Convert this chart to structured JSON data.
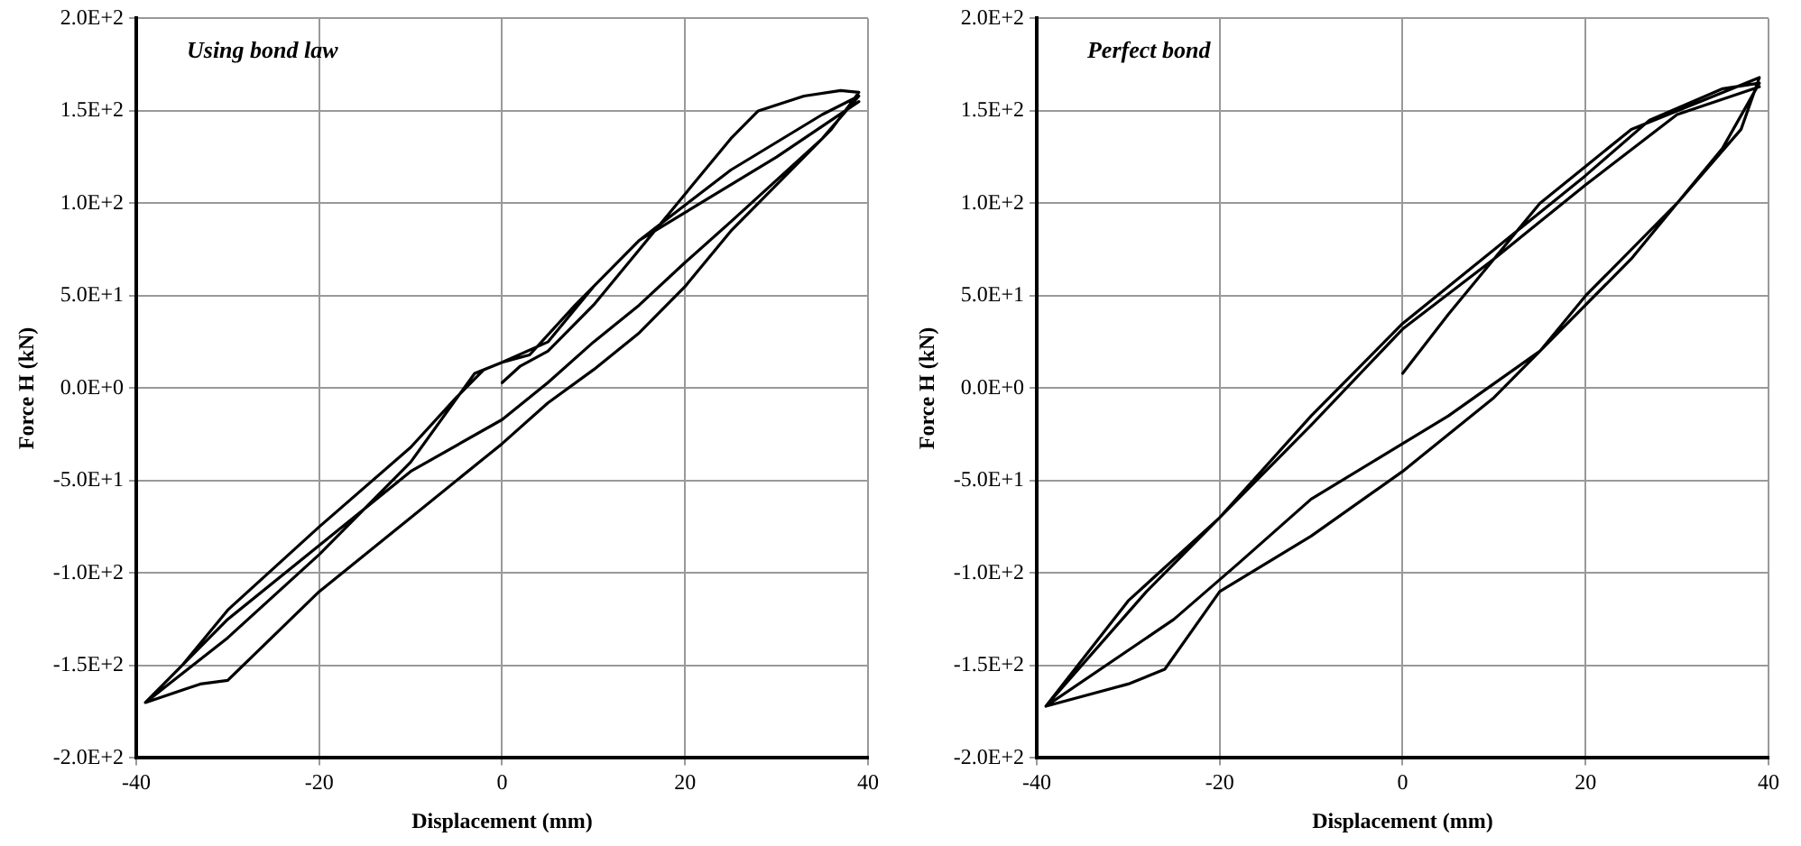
{
  "chart_data": [
    {
      "type": "line",
      "xlabel": "Displacement (mm)",
      "ylabel": "Force H (kN)",
      "annotations": [
        "Using bond law"
      ],
      "xlim": [
        -40,
        40
      ],
      "xticks": [
        -40,
        -20,
        0,
        20,
        40
      ],
      "ylim": [
        -200,
        200
      ],
      "yticks": [
        {
          "value": -200,
          "label": "-2.0E+2"
        },
        {
          "value": -150,
          "label": "-1.5E+2"
        },
        {
          "value": -100,
          "label": "-1.0E+2"
        },
        {
          "value": -50,
          "label": "-5.0E+1"
        },
        {
          "value": 0,
          "label": "0.0E+0"
        },
        {
          "value": 50,
          "label": "5.0E+1"
        },
        {
          "value": 100,
          "label": "1.0E+2"
        },
        {
          "value": 150,
          "label": "1.5E+2"
        },
        {
          "value": 200,
          "label": "2.0E+2"
        }
      ],
      "grid": true,
      "legend": false,
      "marker": "none",
      "line_style": "solid",
      "series": [
        {
          "color": "#000000",
          "x": [
            0,
            2,
            5,
            10,
            15,
            20,
            25,
            28,
            33,
            37,
            39,
            36,
            30,
            25,
            20,
            15,
            10,
            5,
            0,
            -10,
            -20,
            -30,
            -33,
            -39,
            -35,
            -30,
            -20,
            -10,
            -5,
            -2,
            0,
            3,
            8,
            15,
            25,
            35,
            39,
            35,
            25,
            20,
            15,
            10,
            5,
            0,
            -10,
            -20,
            -30,
            -39,
            -30,
            -20,
            -10,
            -3,
            0,
            5,
            10,
            15,
            20,
            30,
            39
          ],
          "values": [
            3,
            12,
            20,
            45,
            75,
            105,
            135,
            150,
            158,
            161,
            160,
            140,
            110,
            85,
            55,
            30,
            10,
            -8,
            -30,
            -70,
            -110,
            -158,
            -160,
            -170,
            -150,
            -120,
            -75,
            -32,
            -5,
            10,
            14,
            18,
            45,
            80,
            118,
            148,
            158,
            135,
            90,
            68,
            45,
            25,
            3,
            -17,
            -45,
            -85,
            -125,
            -170,
            -135,
            -90,
            -40,
            8,
            14,
            25,
            55,
            80,
            95,
            125,
            155
          ]
        }
      ]
    },
    {
      "type": "line",
      "xlabel": "Displacement (mm)",
      "ylabel": "Force H (kN)",
      "annotations": [
        "Perfect bond"
      ],
      "xlim": [
        -40,
        40
      ],
      "xticks": [
        -40,
        -20,
        0,
        20,
        40
      ],
      "ylim": [
        -200,
        200
      ],
      "yticks": [
        {
          "value": -200,
          "label": "-2.0E+2"
        },
        {
          "value": -150,
          "label": "-1.5E+2"
        },
        {
          "value": -100,
          "label": "-1.0E+2"
        },
        {
          "value": -50,
          "label": "-5.0E+1"
        },
        {
          "value": 0,
          "label": "0.0E+0"
        },
        {
          "value": 50,
          "label": "5.0E+1"
        },
        {
          "value": 100,
          "label": "1.0E+2"
        },
        {
          "value": 150,
          "label": "1.5E+2"
        },
        {
          "value": 200,
          "label": "2.0E+2"
        }
      ],
      "grid": true,
      "legend": false,
      "marker": "none",
      "line_style": "solid",
      "series": [
        {
          "color": "#000000",
          "x": [
            0,
            5,
            10,
            15,
            20,
            25,
            30,
            35,
            39,
            37,
            30,
            20,
            15,
            10,
            0,
            -10,
            -20,
            -26,
            -30,
            -39,
            -30,
            -20,
            -10,
            0,
            10,
            20,
            27,
            35,
            39,
            35,
            25,
            15,
            5,
            0,
            -10,
            -18,
            -25,
            -39,
            -28,
            -18,
            -10,
            0,
            10,
            20,
            30,
            39
          ],
          "values": [
            8,
            40,
            70,
            100,
            120,
            140,
            150,
            160,
            168,
            140,
            100,
            50,
            20,
            -5,
            -45,
            -80,
            -110,
            -152,
            -160,
            -172,
            -115,
            -70,
            -15,
            35,
            75,
            115,
            145,
            162,
            165,
            130,
            70,
            20,
            -15,
            -30,
            -60,
            -95,
            -125,
            -172,
            -110,
            -60,
            -20,
            32,
            70,
            110,
            148,
            163
          ]
        }
      ]
    }
  ]
}
